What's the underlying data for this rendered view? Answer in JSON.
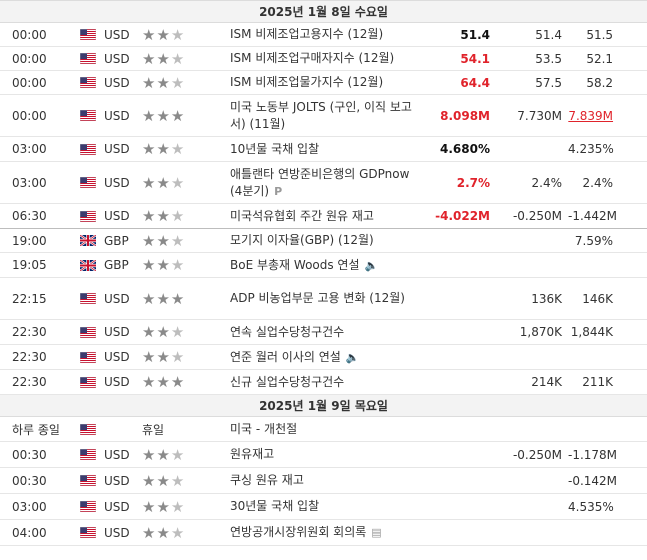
{
  "days": [
    {
      "date": "2025년 1월 8일 수요일",
      "events": [
        {
          "time": "00:00",
          "flag": "us",
          "currency": "USD",
          "stars": 2,
          "name": "ISM 비제조업고용지수 (12월)",
          "actual": "51.4",
          "actual_color": "black",
          "forecast": "51.4",
          "previous": "51.5",
          "icon": "",
          "h": 24
        },
        {
          "time": "00:00",
          "flag": "us",
          "currency": "USD",
          "stars": 2,
          "name": "ISM 비제조업구매자지수 (12월)",
          "actual": "54.1",
          "actual_color": "red",
          "forecast": "53.5",
          "previous": "52.1",
          "icon": "",
          "h": 24
        },
        {
          "time": "00:00",
          "flag": "us",
          "currency": "USD",
          "stars": 2,
          "name": "ISM 비제조업물가지수 (12월)",
          "actual": "64.4",
          "actual_color": "red",
          "forecast": "57.5",
          "previous": "58.2",
          "icon": "",
          "h": 24
        },
        {
          "time": "00:00",
          "flag": "us",
          "currency": "USD",
          "stars": 3,
          "name": "미국 노동부 JOLTS (구인, 이직 보고서) (11월)",
          "actual": "8.098M",
          "actual_color": "red",
          "forecast": "7.730M",
          "previous": "7.839M",
          "previous_style": "revised",
          "icon": "",
          "h": 42
        },
        {
          "time": "03:00",
          "flag": "us",
          "currency": "USD",
          "stars": 2,
          "name": "10년물 국채 입찰",
          "actual": "4.680%",
          "actual_color": "black",
          "forecast": "",
          "previous": "4.235%",
          "icon": "",
          "h": 25
        },
        {
          "time": "03:00",
          "flag": "us",
          "currency": "USD",
          "stars": 2,
          "name": "애틀랜타 연방준비은행의 GDPnow (4분기)",
          "actual": "2.7%",
          "actual_color": "red",
          "forecast": "2.4%",
          "previous": "2.4%",
          "icon": "P",
          "h": 42
        },
        {
          "time": "06:30",
          "flag": "us",
          "currency": "USD",
          "stars": 2,
          "name": "미국석유협회 주간 원유 재고",
          "actual": "-4.022M",
          "actual_color": "red",
          "forecast": "-0.250M",
          "previous": "-1.442M",
          "icon": "",
          "h": 25,
          "sep": true
        },
        {
          "time": "19:00",
          "flag": "gb",
          "currency": "GBP",
          "stars": 2,
          "name": "모기지 이자율(GBP) (12월)",
          "actual": "",
          "actual_color": "black",
          "forecast": "",
          "previous": "7.59%",
          "icon": "",
          "h": 24
        },
        {
          "time": "19:05",
          "flag": "gb",
          "currency": "GBP",
          "stars": 2,
          "name": "BoE 부총재 Woods 연설",
          "actual": "",
          "actual_color": "black",
          "forecast": "",
          "previous": "",
          "icon": "speaker",
          "h": 25
        },
        {
          "time": "22:15",
          "flag": "us",
          "currency": "USD",
          "stars": 3,
          "name": "ADP 비농업부문 고용 변화 (12월)",
          "actual": "",
          "actual_color": "black",
          "forecast": "136K",
          "previous": "146K",
          "icon": "",
          "h": 42
        },
        {
          "time": "22:30",
          "flag": "us",
          "currency": "USD",
          "stars": 2,
          "name": "연속 실업수당청구건수",
          "actual": "",
          "actual_color": "black",
          "forecast": "1,870K",
          "previous": "1,844K",
          "icon": "",
          "h": 25
        },
        {
          "time": "22:30",
          "flag": "us",
          "currency": "USD",
          "stars": 2,
          "name": "연준 월러 이사의 연설",
          "actual": "",
          "actual_color": "black",
          "forecast": "",
          "previous": "",
          "icon": "speaker",
          "h": 25
        },
        {
          "time": "22:30",
          "flag": "us",
          "currency": "USD",
          "stars": 3,
          "name": "신규 실업수당청구건수",
          "actual": "",
          "actual_color": "black",
          "forecast": "214K",
          "previous": "211K",
          "icon": "",
          "h": 25
        }
      ]
    },
    {
      "date": "2025년 1월 9일 목요일",
      "events": [
        {
          "time": "하루 종일",
          "flag": "us",
          "currency": "",
          "stars": 0,
          "holiday": "휴일",
          "name": "미국 - 개천절",
          "actual": "",
          "actual_color": "black",
          "forecast": "",
          "previous": "",
          "icon": "",
          "h": 25
        },
        {
          "time": "00:30",
          "flag": "us",
          "currency": "USD",
          "stars": 2,
          "name": "원유재고",
          "actual": "",
          "actual_color": "black",
          "forecast": "-0.250M",
          "previous": "-1.178M",
          "icon": "",
          "h": 26
        },
        {
          "time": "00:30",
          "flag": "us",
          "currency": "USD",
          "stars": 2,
          "name": "쿠싱 원유 재고",
          "actual": "",
          "actual_color": "black",
          "forecast": "",
          "previous": "-0.142M",
          "icon": "",
          "h": 26
        },
        {
          "time": "03:00",
          "flag": "us",
          "currency": "USD",
          "stars": 2,
          "name": "30년물 국채 입찰",
          "actual": "",
          "actual_color": "black",
          "forecast": "",
          "previous": "4.535%",
          "icon": "",
          "h": 26
        },
        {
          "time": "04:00",
          "flag": "us",
          "currency": "USD",
          "stars": 2,
          "name": "연방공개시장위원회 회의록",
          "actual": "",
          "actual_color": "black",
          "forecast": "",
          "previous": "",
          "icon": "doc",
          "h": 26
        }
      ]
    }
  ]
}
